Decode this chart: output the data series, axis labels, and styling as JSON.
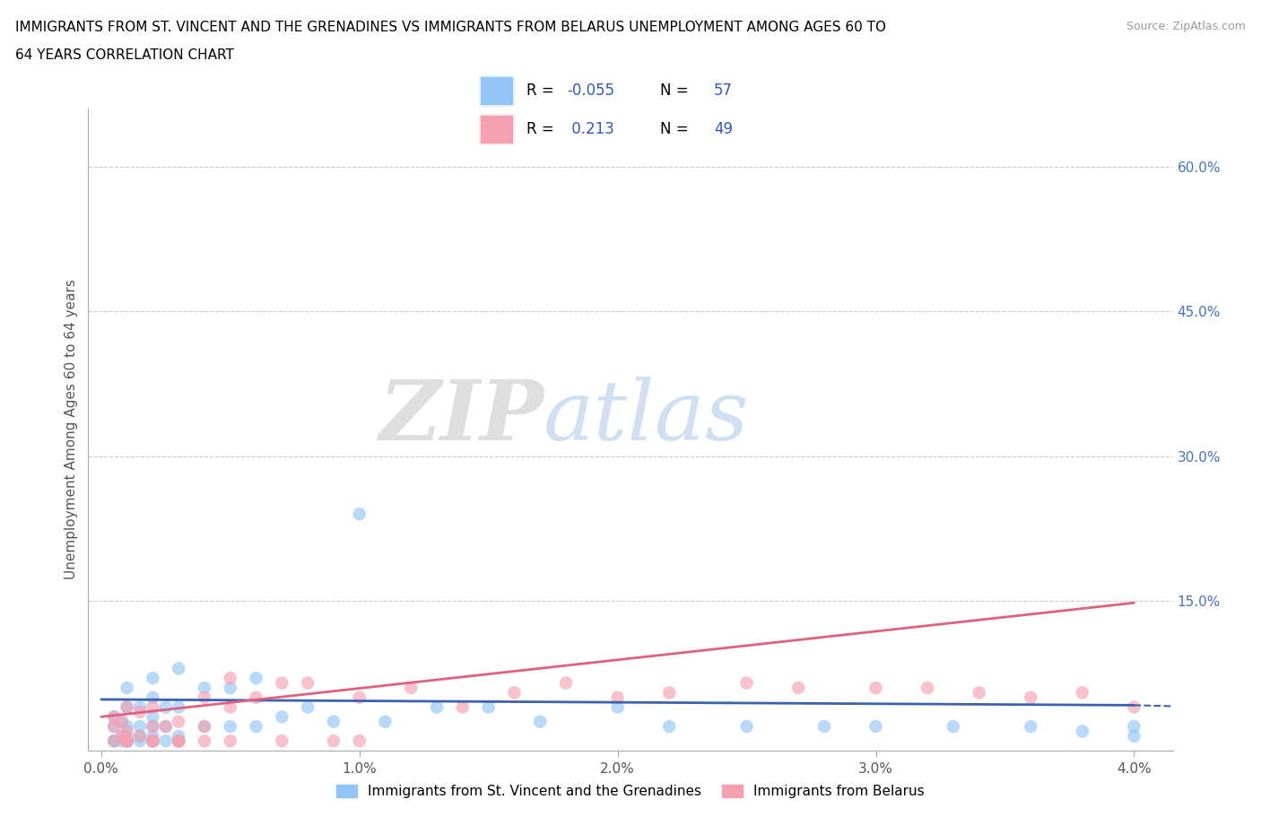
{
  "title_line1": "IMMIGRANTS FROM ST. VINCENT AND THE GRENADINES VS IMMIGRANTS FROM BELARUS UNEMPLOYMENT AMONG AGES 60 TO",
  "title_line2": "64 YEARS CORRELATION CHART",
  "source_text": "Source: ZipAtlas.com",
  "ylabel": "Unemployment Among Ages 60 to 64 years",
  "xlim": [
    -0.0005,
    0.0415
  ],
  "ylim": [
    -0.005,
    0.66
  ],
  "xticks": [
    0.0,
    0.01,
    0.02,
    0.03,
    0.04
  ],
  "xticklabels": [
    "0.0%",
    "1.0%",
    "2.0%",
    "3.0%",
    "4.0%"
  ],
  "yticks_right": [
    0.15,
    0.3,
    0.45,
    0.6
  ],
  "ytick_right_labels": [
    "15.0%",
    "30.0%",
    "45.0%",
    "60.0%"
  ],
  "grid_color": "#cccccc",
  "watermark_zip": "ZIP",
  "watermark_atlas": "atlas",
  "color_blue": "#92c5f5",
  "color_pink": "#f5a0b0",
  "line_color_blue": "#3a62b0",
  "line_color_pink": "#e06080",
  "sv_x": [
    0.0005,
    0.0005,
    0.0005,
    0.0008,
    0.0008,
    0.0008,
    0.001,
    0.001,
    0.001,
    0.001,
    0.001,
    0.0015,
    0.0015,
    0.0015,
    0.0015,
    0.002,
    0.002,
    0.002,
    0.002,
    0.002,
    0.002,
    0.0025,
    0.0025,
    0.0025,
    0.003,
    0.003,
    0.003,
    0.004,
    0.004,
    0.005,
    0.005,
    0.006,
    0.006,
    0.007,
    0.008,
    0.009,
    0.01,
    0.011,
    0.013,
    0.015,
    0.017,
    0.02,
    0.022,
    0.025,
    0.028,
    0.03,
    0.033,
    0.036,
    0.038,
    0.04,
    0.04,
    0.002,
    0.003,
    0.001,
    0.0005,
    0.001,
    0.002,
    0.003
  ],
  "sv_y": [
    0.005,
    0.02,
    0.03,
    0.005,
    0.01,
    0.025,
    0.005,
    0.01,
    0.02,
    0.04,
    0.06,
    0.005,
    0.01,
    0.02,
    0.04,
    0.005,
    0.01,
    0.02,
    0.03,
    0.05,
    0.07,
    0.005,
    0.02,
    0.04,
    0.01,
    0.04,
    0.08,
    0.02,
    0.06,
    0.02,
    0.06,
    0.02,
    0.07,
    0.03,
    0.04,
    0.025,
    0.24,
    0.025,
    0.04,
    0.04,
    0.025,
    0.04,
    0.02,
    0.02,
    0.02,
    0.02,
    0.02,
    0.02,
    0.015,
    0.01,
    0.02,
    0.005,
    0.005,
    0.005,
    0.005,
    0.005,
    0.005,
    0.005
  ],
  "bel_x": [
    0.0005,
    0.0005,
    0.0005,
    0.0008,
    0.0008,
    0.001,
    0.001,
    0.001,
    0.0015,
    0.0015,
    0.002,
    0.002,
    0.002,
    0.0025,
    0.003,
    0.003,
    0.004,
    0.004,
    0.005,
    0.005,
    0.006,
    0.007,
    0.008,
    0.01,
    0.012,
    0.014,
    0.016,
    0.018,
    0.02,
    0.022,
    0.025,
    0.027,
    0.03,
    0.032,
    0.034,
    0.036,
    0.038,
    0.04,
    0.001,
    0.002,
    0.003,
    0.001,
    0.002,
    0.003,
    0.004,
    0.005,
    0.007,
    0.009,
    0.01
  ],
  "bel_y": [
    0.005,
    0.02,
    0.03,
    0.01,
    0.025,
    0.005,
    0.015,
    0.04,
    0.01,
    0.035,
    0.005,
    0.02,
    0.04,
    0.02,
    0.005,
    0.025,
    0.02,
    0.05,
    0.04,
    0.07,
    0.05,
    0.065,
    0.065,
    0.05,
    0.06,
    0.04,
    0.055,
    0.065,
    0.05,
    0.055,
    0.065,
    0.06,
    0.06,
    0.06,
    0.055,
    0.05,
    0.055,
    0.04,
    0.005,
    0.005,
    0.005,
    0.005,
    0.005,
    0.005,
    0.005,
    0.005,
    0.005,
    0.005,
    0.005
  ]
}
